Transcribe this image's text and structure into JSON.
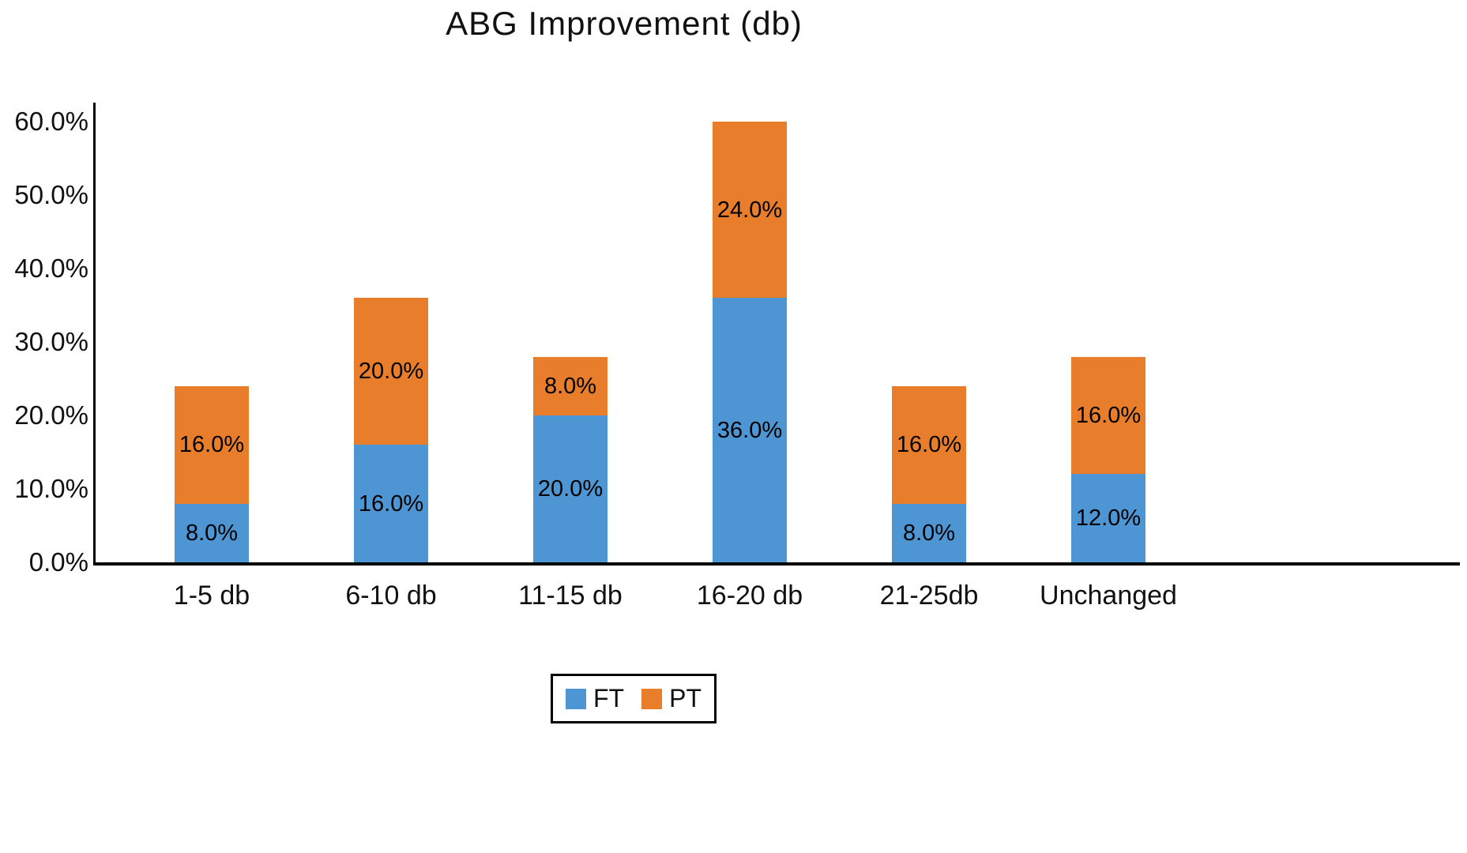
{
  "chart_data": {
    "type": "bar",
    "stacked": true,
    "title": "ABG Improvement (db)",
    "categories": [
      "1-5 db",
      "6-10 db",
      "11-15 db",
      "16-20 db",
      "21-25db",
      "Unchanged"
    ],
    "series": [
      {
        "name": "FT",
        "color": "#4E95D3",
        "values": [
          8.0,
          16.0,
          20.0,
          36.0,
          8.0,
          12.0
        ],
        "labels": [
          "8.0%",
          "16.0%",
          "20.0%",
          "36.0%",
          "8.0%",
          "12.0%"
        ]
      },
      {
        "name": "PT",
        "color": "#E87E2B",
        "values": [
          16.0,
          20.0,
          8.0,
          24.0,
          16.0,
          16.0
        ],
        "labels": [
          "16.0%",
          "20.0%",
          "8.0%",
          "24.0%",
          "16.0%",
          "16.0%"
        ]
      }
    ],
    "y_ticks": [
      "0.0%",
      "10.0%",
      "20.0%",
      "30.0%",
      "40.0%",
      "50.0%",
      "60.0%"
    ],
    "y_tick_values": [
      0,
      10,
      20,
      30,
      40,
      50,
      60
    ],
    "ylim": [
      0,
      62.5
    ],
    "ylabel": "",
    "xlabel": "",
    "grid": false,
    "legend_position": "bottom"
  }
}
